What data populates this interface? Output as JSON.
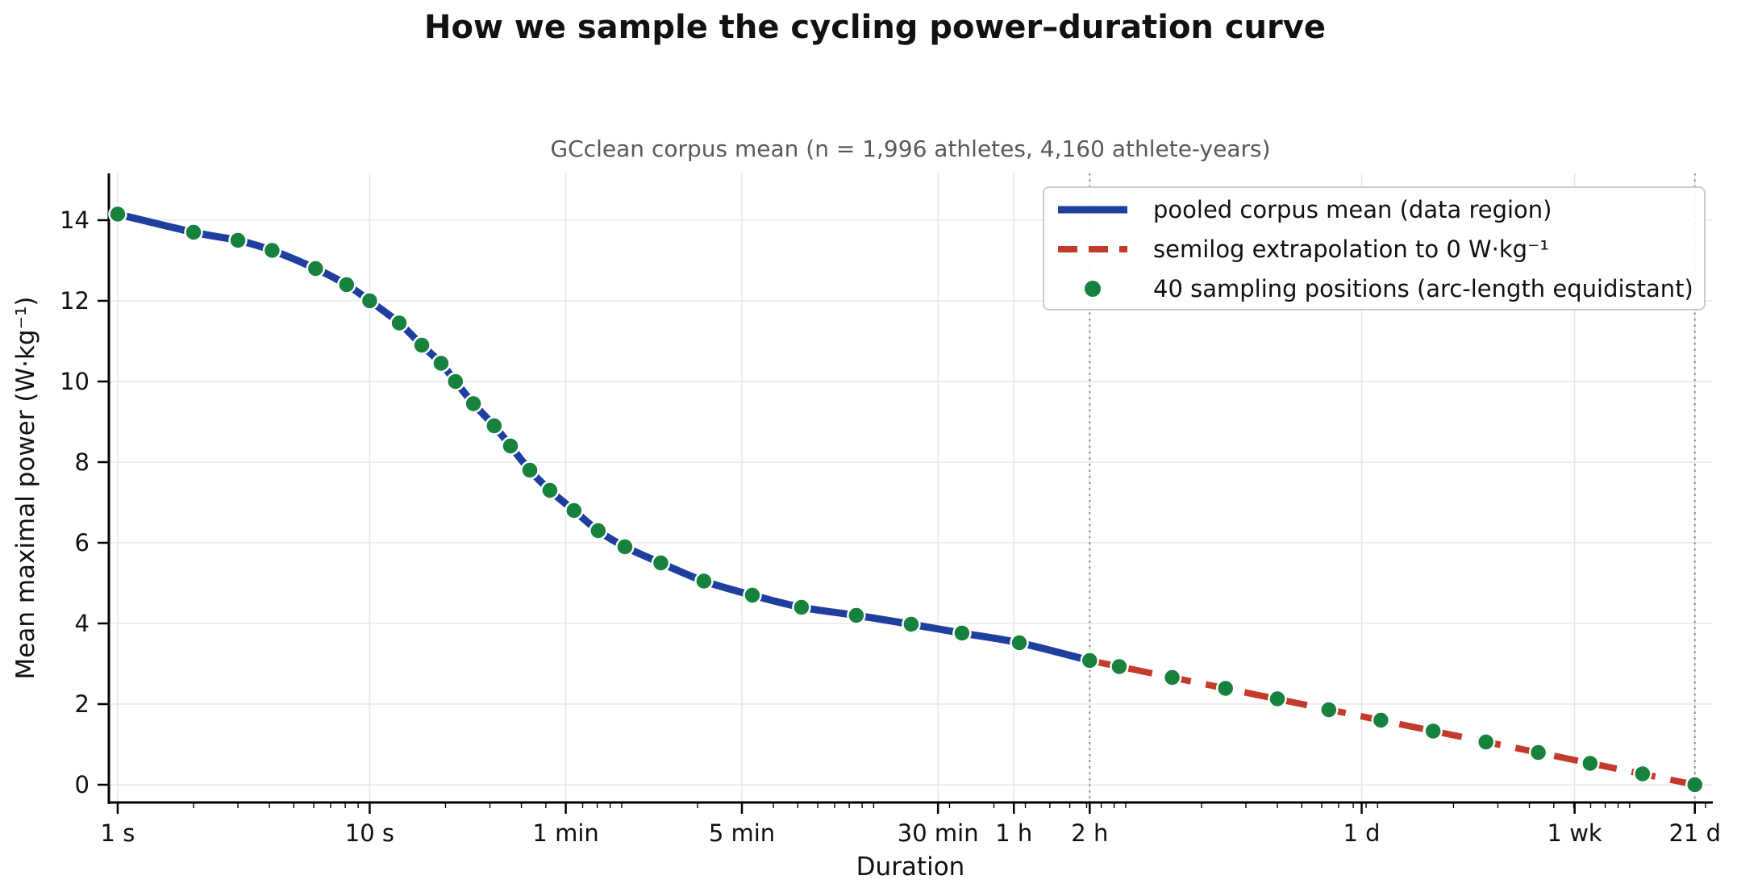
{
  "title": "How we sample the cycling power–duration curve",
  "subtitle": "GCclean corpus mean (n = 1,996 athletes, 4,160 athlete-years)",
  "colors": {
    "data_line": "#1e3f9e",
    "extrapolation_line": "#c13a2c",
    "sample_dot": "#17813e",
    "dot_edge": "#ffffff",
    "grid": "#e8e8e8",
    "boundary_vline": "#8a8a8a",
    "spine": "#000000",
    "subtitle_text": "#595959"
  },
  "chart_data": {
    "type": "line",
    "x_scale": "log",
    "xlabel": "Duration",
    "ylabel": "Mean maximal power (W·kg⁻¹)",
    "xlim_log10": [
      -0.035,
      6.33
    ],
    "ylim": [
      -0.44,
      15.16
    ],
    "grid": true,
    "legend_position": "upper right",
    "x_ticks": [
      {
        "t": 1,
        "label": "1 s"
      },
      {
        "t": 10,
        "label": "10 s"
      },
      {
        "t": 60,
        "label": "1 min"
      },
      {
        "t": 300,
        "label": "5 min"
      },
      {
        "t": 1800,
        "label": "30 min"
      },
      {
        "t": 3600,
        "label": "1 h"
      },
      {
        "t": 7200,
        "label": "2 h"
      },
      {
        "t": 86400,
        "label": "1 d"
      },
      {
        "t": 604800,
        "label": "1 wk"
      },
      {
        "t": 1814400,
        "label": "21 d"
      }
    ],
    "x_minor_subs": [
      2,
      3,
      4,
      5,
      6,
      7,
      8,
      9
    ],
    "x_minor_extra_decades": [
      100,
      1000,
      10000,
      100000,
      1000000
    ],
    "y_ticks": [
      0,
      2,
      4,
      6,
      8,
      10,
      12,
      14
    ],
    "boundary_vlines_t": [
      7200,
      1814400
    ],
    "series": [
      {
        "name": "pooled corpus mean (data region)",
        "kind": "line",
        "style": "solid",
        "color": "#1e3f9e",
        "points": [
          [
            1,
            14.15
          ],
          [
            2,
            13.7
          ],
          [
            3,
            13.5
          ],
          [
            4.1,
            13.25
          ],
          [
            6.1,
            12.8
          ],
          [
            8.1,
            12.4
          ],
          [
            10,
            12.0
          ],
          [
            13.1,
            11.45
          ],
          [
            16.1,
            10.9
          ],
          [
            19.2,
            10.45
          ],
          [
            21.9,
            10.0
          ],
          [
            25.8,
            9.45
          ],
          [
            31.2,
            8.9
          ],
          [
            36.2,
            8.4
          ],
          [
            43.2,
            7.8
          ],
          [
            51.9,
            7.3
          ],
          [
            64.7,
            6.8
          ],
          [
            80.7,
            6.3
          ],
          [
            103,
            5.9
          ],
          [
            143,
            5.5
          ],
          [
            212,
            5.05
          ],
          [
            330,
            4.7
          ],
          [
            517,
            4.4
          ],
          [
            853,
            4.2
          ],
          [
            1409,
            3.98
          ],
          [
            2241,
            3.76
          ],
          [
            3784,
            3.52
          ],
          [
            7200,
            3.08
          ]
        ]
      },
      {
        "name": "semilog extrapolation to 0 W·kg⁻¹",
        "kind": "line",
        "style": "dashed",
        "color": "#c13a2c",
        "points": [
          [
            7200,
            3.08
          ],
          [
            1814400,
            0
          ]
        ]
      },
      {
        "name": "40 sampling positions (arc-length equidistant)",
        "kind": "scatter",
        "color": "#17813e",
        "marker_edge": "#ffffff",
        "points": [
          [
            1,
            14.15
          ],
          [
            2,
            13.7
          ],
          [
            3,
            13.5
          ],
          [
            4.1,
            13.25
          ],
          [
            6.1,
            12.8
          ],
          [
            8.1,
            12.4
          ],
          [
            10,
            12.0
          ],
          [
            13.1,
            11.45
          ],
          [
            16.1,
            10.9
          ],
          [
            19.2,
            10.45
          ],
          [
            21.9,
            10.0
          ],
          [
            25.8,
            9.45
          ],
          [
            31.2,
            8.9
          ],
          [
            36.2,
            8.4
          ],
          [
            43.2,
            7.8
          ],
          [
            51.9,
            7.3
          ],
          [
            64.7,
            6.8
          ],
          [
            80.7,
            6.3
          ],
          [
            103,
            5.9
          ],
          [
            143,
            5.5
          ],
          [
            212,
            5.05
          ],
          [
            330,
            4.7
          ],
          [
            517,
            4.4
          ],
          [
            853,
            4.2
          ],
          [
            1409,
            3.98
          ],
          [
            2241,
            3.76
          ],
          [
            3784,
            3.52
          ],
          [
            7200,
            3.08
          ],
          [
            9430,
            2.93
          ],
          [
            15300,
            2.66
          ],
          [
            24900,
            2.39
          ],
          [
            40000,
            2.13
          ],
          [
            64000,
            1.86
          ],
          [
            103000,
            1.6
          ],
          [
            166000,
            1.33
          ],
          [
            269000,
            1.06
          ],
          [
            434000,
            0.8
          ],
          [
            697000,
            0.53
          ],
          [
            1125000,
            0.27
          ],
          [
            1814400,
            0
          ]
        ]
      }
    ],
    "legend": {
      "items": [
        {
          "label": "pooled corpus mean (data region)",
          "marker": "solid-line",
          "color": "#1e3f9e"
        },
        {
          "label": "semilog extrapolation to 0 W·kg⁻¹",
          "marker": "dashed-line",
          "color": "#c13a2c"
        },
        {
          "label": "40 sampling positions (arc-length equidistant)",
          "marker": "dot",
          "color": "#17813e"
        }
      ]
    }
  }
}
